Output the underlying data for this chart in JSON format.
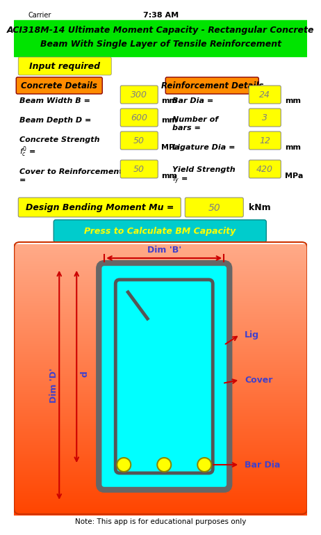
{
  "title_line1": "ACI318M-14 Ultimate Moment Capacity - Rectangular Concrete",
  "title_line2": "Beam With Single Layer of Tensile Reinforcement",
  "title_bg": "#00e400",
  "status_bar_bg": "#ffffff",
  "input_required_text": "Input required",
  "input_required_bg": "#ffff00",
  "concrete_details_text": "Concrete Details",
  "concrete_details_bg": "#ff8c00",
  "reinforcement_details_text": "Reinforcement Details",
  "reinforcement_details_bg": "#ff8c00",
  "fields_left": [
    {
      "label": "Beam Width B =",
      "value": "300",
      "unit": "mm"
    },
    {
      "label": "Beam Depth D =",
      "value": "600",
      "unit": "mm"
    },
    {
      "label": "Concrete Strength\nf'c =",
      "value": "50",
      "unit": "MPa"
    },
    {
      "label": "Cover to Reinforcement\n=",
      "value": "50",
      "unit": "mm"
    }
  ],
  "fields_right": [
    {
      "label": "Bar Dia =",
      "value": "24",
      "unit": "mm"
    },
    {
      "label": "Number of\nbars =",
      "value": "3",
      "unit": ""
    },
    {
      "label": "Ligature Dia =",
      "value": "12",
      "unit": "mm"
    },
    {
      "label": "Yield Strength\nfy =",
      "value": "420",
      "unit": "MPa"
    }
  ],
  "design_moment_label": "Design Bending Moment Mu =",
  "design_moment_value": "50",
  "design_moment_unit": "kNm",
  "button_text": "Press to Calculate BM Capacity",
  "button_bg": "#00cccc",
  "diagram_bg_top": "#ffb090",
  "diagram_bg_bottom": "#ff4500",
  "beam_fill": "#00ffff",
  "beam_outline": "#666666",
  "note_text": "Note: This app is for educational purposes only",
  "arrow_color": "#cc0000",
  "label_color": "#4040cc",
  "dim_b_text": "Dim 'B'",
  "dim_d_text": "Dim 'D'",
  "d_text": "d",
  "lig_text": "Lig",
  "cover_text": "Cover",
  "bar_dia_text": "Bar Dia",
  "bar_color": "#ffff00",
  "bar_outline": "#888800",
  "input_value_bg": "#ffff00",
  "input_value_color": "#808080",
  "label_font_color": "#000000",
  "page_bg": "#ffffff"
}
